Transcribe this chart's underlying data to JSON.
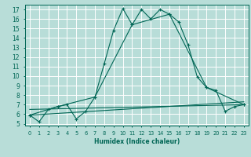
{
  "xlabel": "Humidex (Indice chaleur)",
  "bg_color": "#b8ddd8",
  "grid_color": "#ffffff",
  "line_color": "#006655",
  "xlim": [
    -0.5,
    23.5
  ],
  "ylim": [
    4.8,
    17.5
  ],
  "xticks": [
    0,
    1,
    2,
    3,
    4,
    5,
    6,
    7,
    8,
    9,
    10,
    11,
    12,
    13,
    14,
    15,
    16,
    17,
    18,
    19,
    20,
    21,
    22,
    23
  ],
  "yticks": [
    5,
    6,
    7,
    8,
    9,
    10,
    11,
    12,
    13,
    14,
    15,
    16,
    17
  ],
  "series": [
    {
      "x": [
        0,
        1,
        2,
        3,
        4,
        5,
        6,
        7,
        8,
        9,
        10,
        11,
        12,
        13,
        14,
        15,
        16,
        17,
        18,
        19,
        20,
        21,
        22,
        23
      ],
      "y": [
        5.9,
        5.2,
        6.5,
        6.8,
        7.0,
        5.5,
        6.3,
        7.8,
        11.3,
        14.8,
        17.1,
        15.4,
        17.0,
        16.0,
        17.0,
        16.5,
        15.7,
        13.3,
        9.9,
        8.8,
        8.5,
        6.3,
        6.8,
        7.0
      ],
      "marker": true
    },
    {
      "x": [
        0,
        3,
        7,
        11,
        15,
        19,
        23
      ],
      "y": [
        5.9,
        6.8,
        7.8,
        15.4,
        16.5,
        8.8,
        7.0
      ],
      "marker": true
    },
    {
      "x": [
        0,
        23
      ],
      "y": [
        5.9,
        7.3
      ],
      "marker": false
    },
    {
      "x": [
        0,
        23
      ],
      "y": [
        6.5,
        7.0
      ],
      "marker": false
    }
  ],
  "xlabel_fontsize": 5.5,
  "tick_fontsize_x": 4.8,
  "tick_fontsize_y": 5.5
}
